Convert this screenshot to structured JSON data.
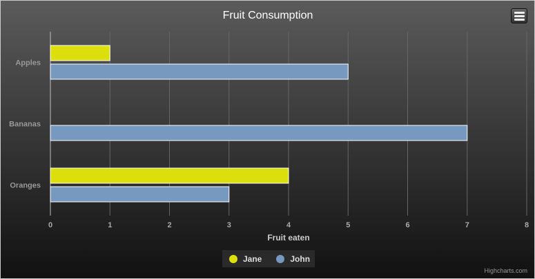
{
  "chart_data": {
    "type": "bar",
    "orientation": "horizontal",
    "title": "Fruit Consumption",
    "categories": [
      "Apples",
      "Bananas",
      "Oranges"
    ],
    "series": [
      {
        "name": "Jane",
        "color": "#dddf0d",
        "values": [
          1,
          0,
          4
        ]
      },
      {
        "name": "John",
        "color": "#7798bf",
        "values": [
          5,
          7,
          3
        ]
      }
    ],
    "xlabel": "Fruit eaten",
    "xlim": [
      0,
      8
    ],
    "xticks": [
      "0",
      "1",
      "2",
      "3",
      "4",
      "5",
      "6",
      "7",
      "8"
    ],
    "grid": true,
    "legend": "bottom-center"
  },
  "credit": "Highcharts.com"
}
